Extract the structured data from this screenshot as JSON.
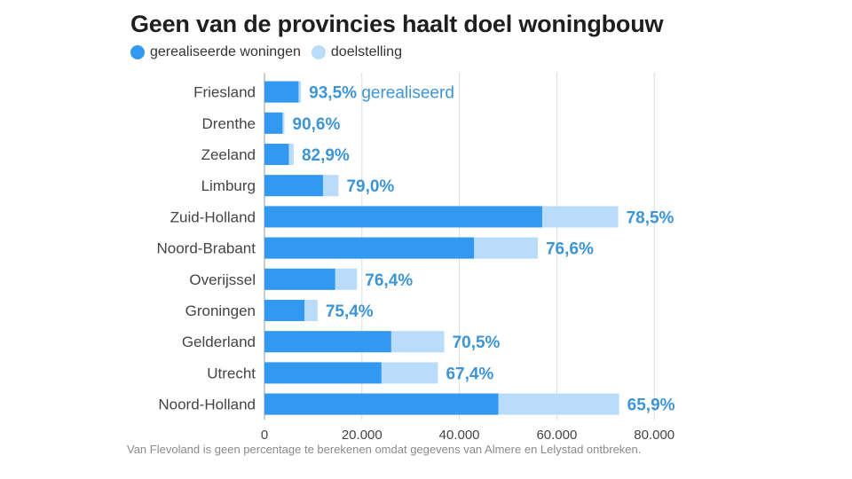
{
  "title": "Geen van de provincies haalt doel woningbouw",
  "legend": {
    "realized_label": "gerealiseerde woningen",
    "target_label": "doelstelling"
  },
  "colors": {
    "realized": "#3398f0",
    "target": "#b9dcfa",
    "pct_label": "#3d95d6",
    "category_text": "#444444",
    "grid": "#dddddd"
  },
  "footnote": "Van Flevoland is geen percentage te berekenen omdat gegevens van Almere en Lelystad ontbreken.",
  "chart_data": {
    "type": "bar",
    "orientation": "horizontal",
    "categories": [
      "Friesland",
      "Drenthe",
      "Zeeland",
      "Limburg",
      "Zuid-Holland",
      "Noord-Brabant",
      "Overijssel",
      "Groningen",
      "Gelderland",
      "Utrecht",
      "Noord-Holland"
    ],
    "series": [
      {
        "name": "gerealiseerde woningen",
        "values": [
          7000,
          3700,
          5000,
          12000,
          57000,
          43000,
          14500,
          8200,
          26000,
          24000,
          48000
        ]
      },
      {
        "name": "doelstelling",
        "values": [
          7500,
          4100,
          6000,
          15200,
          72600,
          56100,
          19000,
          10900,
          36900,
          35600,
          72800
        ]
      }
    ],
    "percent_labels": [
      "93,5%",
      "90,6%",
      "82,9%",
      "79,0%",
      "78,5%",
      "76,6%",
      "76,4%",
      "75,4%",
      "70,5%",
      "67,4%",
      "65,9%"
    ],
    "first_label_suffix": "gerealiseerd",
    "xlim": [
      0,
      80000
    ],
    "xticks": [
      0,
      20000,
      40000,
      60000,
      80000
    ],
    "xtick_labels": [
      "0",
      "20.000",
      "40.000",
      "60.000",
      "80.000"
    ],
    "grid": true,
    "legend_position": "top-left"
  }
}
